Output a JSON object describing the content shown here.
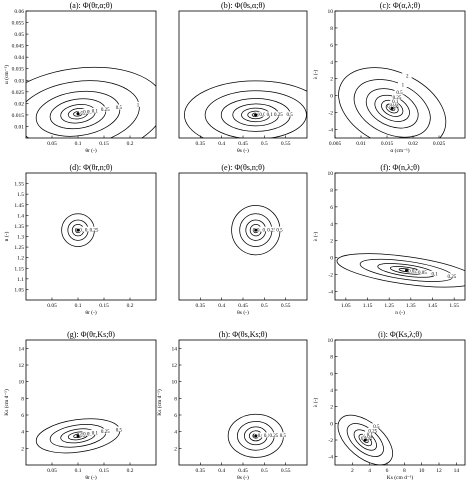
{
  "chart_data": [
    {
      "type": "contour",
      "title": "(a): Φ(θr,α;θ)",
      "xlabel": "θr (-)",
      "ylabel": "α (cm⁻¹)",
      "xlim": [
        0,
        0.25
      ],
      "ylim": [
        0.005,
        0.06
      ],
      "xticks": [
        "0.05",
        "0.1",
        "0.15",
        "0.2"
      ],
      "yticks": [
        "0.01",
        "0.015",
        "0.02",
        "0.025",
        "0.03",
        "0.035",
        "0.04",
        "0.045",
        "0.05",
        "0.055",
        "0.06"
      ],
      "minimum": [
        0.1,
        0.0155
      ],
      "stretch": [
        0.12,
        0.08
      ],
      "rotation": 8,
      "levels": [
        "0.025",
        "0.05",
        "0.1",
        "0.25",
        "0.5",
        "1",
        "2"
      ]
    },
    {
      "type": "contour",
      "title": "(b): Φ(θs,α;θ)",
      "xlabel": "θs (-)",
      "ylabel": "",
      "xlim": [
        0.3,
        0.6
      ],
      "ylim": [
        0.005,
        0.06
      ],
      "xticks": [
        "0.35",
        "0.4",
        "0.45",
        "0.5",
        "0.55"
      ],
      "yticks": [],
      "minimum": [
        0.48,
        0.015
      ],
      "stretch": [
        0.1,
        0.06
      ],
      "rotation": 0,
      "levels": [
        "0.025",
        "0.05",
        "0.1",
        "0.25",
        "0.5",
        "1",
        "2"
      ]
    },
    {
      "type": "contour",
      "title": "(c): Φ(α,λ;θ)",
      "xlabel": "α (cm⁻¹)",
      "ylabel": "λ (-)",
      "xlim": [
        0.005,
        0.03
      ],
      "ylim": [
        -5,
        10
      ],
      "xticks": [
        "0.005",
        "0.01",
        "0.015",
        "0.02",
        "0.025"
      ],
      "yticks": [
        "-4",
        "-2",
        "0",
        "2",
        "4",
        "6",
        "8",
        "10"
      ],
      "minimum": [
        0.016,
        -1.5
      ],
      "stretch": [
        0.05,
        0.1
      ],
      "rotation": 65,
      "levels": [
        "0.025",
        "0.05",
        "0.1",
        "0.25",
        "0.5",
        "1",
        "2"
      ]
    },
    {
      "type": "contour",
      "title": "(d): Φ(θr,n;θ)",
      "xlabel": "θr (-)",
      "ylabel": "n (-)",
      "xlim": [
        0,
        0.25
      ],
      "ylim": [
        1.0,
        1.6
      ],
      "xticks": [
        "0.05",
        "0.1",
        "0.15",
        "0.2"
      ],
      "yticks": [
        "1.05",
        "1.1",
        "1.15",
        "1.2",
        "1.25",
        "1.3",
        "1.35",
        "1.4",
        "1.45",
        "1.5",
        "1.55"
      ],
      "minimum": [
        0.1,
        1.33
      ],
      "stretch": [
        0.07,
        0.09
      ],
      "rotation": 0,
      "levels": [
        "0.025",
        "0.05",
        "0.1",
        "0.25"
      ]
    },
    {
      "type": "contour",
      "title": "(e): Φ(θs,n;θ)",
      "xlabel": "θs (-)",
      "ylabel": "",
      "xlim": [
        0.3,
        0.6
      ],
      "ylim": [
        1.0,
        1.6
      ],
      "xticks": [
        "0.35",
        "0.4",
        "0.45",
        "0.5",
        "0.55"
      ],
      "yticks": [],
      "minimum": [
        0.48,
        1.33
      ],
      "stretch": [
        0.07,
        0.09
      ],
      "rotation": 0,
      "levels": [
        "0.025",
        "0.05",
        "0.1",
        "0.25",
        "0.5"
      ]
    },
    {
      "type": "contour",
      "title": "(f): Φ(n,λ;θ)",
      "xlabel": "n (-)",
      "ylabel": "λ (-)",
      "xlim": [
        1.0,
        1.6
      ],
      "ylim": [
        -5,
        10
      ],
      "xticks": [
        "1.05",
        "1.15",
        "1.25",
        "1.35",
        "1.45",
        "1.55"
      ],
      "yticks": [
        "-4",
        "-2",
        "0",
        "2",
        "4",
        "6",
        "8",
        "10"
      ],
      "minimum": [
        1.33,
        -1.5
      ],
      "stretch": [
        0.2,
        0.05
      ],
      "rotation": -8,
      "levels": [
        "0.025",
        "0.05",
        "0.1",
        "0.25",
        "0.5"
      ]
    },
    {
      "type": "contour",
      "title": "(g): Φ(θr,Ks;θ)",
      "xlabel": "θr (-)",
      "ylabel": "Ks (cm d⁻¹)",
      "xlim": [
        0,
        0.25
      ],
      "ylim": [
        0,
        15
      ],
      "xticks": [
        "0.05",
        "0.1",
        "0.15",
        "0.2"
      ],
      "yticks": [
        "2",
        "4",
        "6",
        "8",
        "10",
        "12",
        "14"
      ],
      "minimum": [
        0.1,
        3.5
      ],
      "stretch": [
        0.12,
        0.06
      ],
      "rotation": 8,
      "levels": [
        "0.025",
        "0.05",
        "0.1",
        "0.25",
        "0.5"
      ]
    },
    {
      "type": "contour",
      "title": "(h): Φ(θs,Ks;θ)",
      "xlabel": "θs (-)",
      "ylabel": "Ks (cm d⁻¹)",
      "xlim": [
        0.3,
        0.6
      ],
      "ylim": [
        0,
        15
      ],
      "xticks": [
        "0.35",
        "0.4",
        "0.45",
        "0.5",
        "0.55"
      ],
      "yticks": [
        "2",
        "4",
        "6",
        "8",
        "10",
        "12",
        "14"
      ],
      "minimum": [
        0.48,
        3.5
      ],
      "stretch": [
        0.08,
        0.08
      ],
      "rotation": 0,
      "levels": [
        "0.025",
        "0.05",
        "0.1",
        "0.25",
        "0.5"
      ]
    },
    {
      "type": "contour",
      "title": "(i): Φ(Ks,λ;θ)",
      "xlabel": "Ks (cm d⁻¹)",
      "ylabel": "λ (-)",
      "xlim": [
        0,
        15
      ],
      "ylim": [
        -5,
        10
      ],
      "xticks": [
        "2",
        "4",
        "6",
        "8",
        "10",
        "12",
        "14"
      ],
      "yticks": [
        "-4",
        "-2",
        "0",
        "2",
        "4",
        "6",
        "8",
        "10"
      ],
      "minimum": [
        3.5,
        -2
      ],
      "stretch": [
        0.05,
        0.12
      ],
      "rotation": 50,
      "levels": [
        "0.025",
        "0.05",
        "0.1",
        "0.25",
        "0.5"
      ]
    }
  ]
}
